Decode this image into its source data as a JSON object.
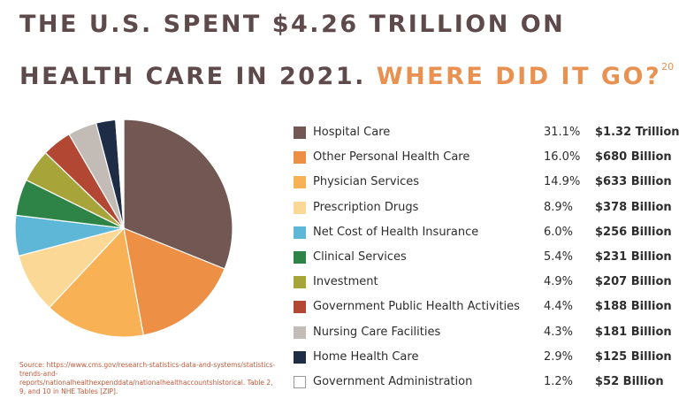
{
  "headline": {
    "line1": "THE U.S. SPENT $4.26 TRILLION ON",
    "line2_main": "HEALTH CARE IN 2021.",
    "line2_accent": "WHERE DID IT GO?",
    "footnote": "20"
  },
  "chart_data": {
    "type": "pie",
    "title": "",
    "slices": [
      {
        "label": "Hospital Care",
        "percent": 31.1,
        "percent_label": "31.1%",
        "amount": "$1.32 Trillion",
        "color": "#735752"
      },
      {
        "label": "Other Personal Health Care",
        "percent": 16.0,
        "percent_label": "16.0%",
        "amount": "$680 Billion",
        "color": "#ed8f44"
      },
      {
        "label": "Physician Services",
        "percent": 14.9,
        "percent_label": "14.9%",
        "amount": "$633 Billion",
        "color": "#f8b155"
      },
      {
        "label": "Prescription Drugs",
        "percent": 8.9,
        "percent_label": "8.9%",
        "amount": "$378 Billion",
        "color": "#fbd896"
      },
      {
        "label": "Net Cost of Health Insurance",
        "percent": 6.0,
        "percent_label": "6.0%",
        "amount": "$256 Billion",
        "color": "#5fb7d7"
      },
      {
        "label": "Clinical Services",
        "percent": 5.4,
        "percent_label": "5.4%",
        "amount": "$231 Billion",
        "color": "#2e8447"
      },
      {
        "label": "Investment",
        "percent": 4.9,
        "percent_label": "4.9%",
        "amount": "$207 Billion",
        "color": "#a7a53a"
      },
      {
        "label": "Government Public Health Activities",
        "percent": 4.4,
        "percent_label": "4.4%",
        "amount": "$188 Billion",
        "color": "#b24733"
      },
      {
        "label": "Nursing Care Facilities",
        "percent": 4.3,
        "percent_label": "4.3%",
        "amount": "$181 Billion",
        "color": "#c3bcb6"
      },
      {
        "label": "Home Health Care",
        "percent": 2.9,
        "percent_label": "2.9%",
        "amount": "$125 Billion",
        "color": "#1f2c45"
      },
      {
        "label": "Government Administration",
        "percent": 1.2,
        "percent_label": "1.2%",
        "amount": "$52  Billion",
        "color": "#ffffff"
      }
    ]
  },
  "source": {
    "text": "Source: https://www.cms.gov/research-statistics-data-and-systems/statistics-trends-and-reports/nationalhealthexpenddata/nationalhealthaccountshistorical. Table 2, 9, and 10 in NHE Tables [ZIP]."
  }
}
